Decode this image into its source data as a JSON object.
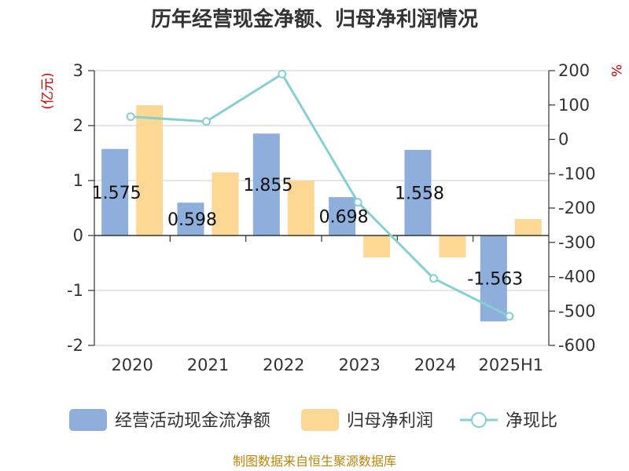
{
  "chart_data": {
    "type": "bar",
    "title": "历年经营现金净额、归母净利润情况",
    "categories": [
      "2020",
      "2021",
      "2022",
      "2023",
      "2024",
      "2025H1"
    ],
    "y_left": {
      "unit": "(亿元)",
      "ylim": [
        -2,
        3
      ],
      "ticks": [
        "3",
        "2",
        "1",
        "0",
        "-1",
        "-2"
      ]
    },
    "y_right": {
      "unit": "%",
      "ylim": [
        -600,
        200
      ],
      "ticks": [
        "200",
        "100",
        "0",
        "-100",
        "-200",
        "-300",
        "-400",
        "-500",
        "-600"
      ]
    },
    "series": [
      {
        "name": "经营活动现金流净额",
        "kind": "bar",
        "axis": "left",
        "color": "#8eaedb",
        "values": [
          1.575,
          0.598,
          1.855,
          0.698,
          1.558,
          -1.563
        ],
        "labels": [
          "1.575",
          "0.598",
          "1.855",
          "0.698",
          "1.558",
          "-1.563"
        ]
      },
      {
        "name": "归母净利润",
        "kind": "bar",
        "axis": "left",
        "color": "#fdd794",
        "values": [
          2.37,
          1.15,
          1.0,
          -0.4,
          -0.4,
          0.3
        ]
      },
      {
        "name": "净现比",
        "kind": "line",
        "axis": "right",
        "color": "#86d0d4",
        "values": [
          66,
          52,
          190,
          -183,
          -405,
          -515
        ]
      }
    ],
    "grid": true,
    "legend_position": "bottom",
    "source": "制图数据来自恒生聚源数据库"
  }
}
